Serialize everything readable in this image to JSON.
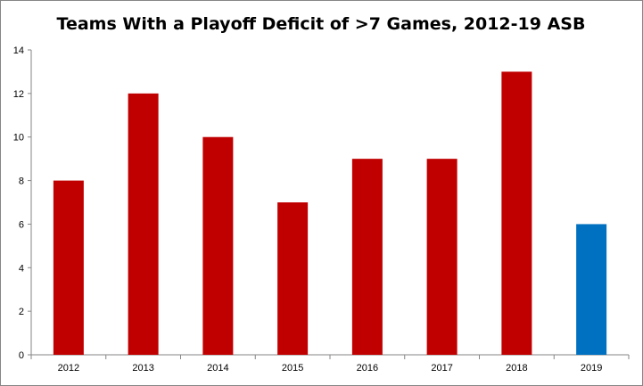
{
  "chart_data": {
    "type": "bar",
    "title": "Teams With a Playoff Deficit of >7 Games, 2012-19 ASB",
    "xlabel": "",
    "ylabel": "",
    "categories": [
      "2012",
      "2013",
      "2014",
      "2015",
      "2016",
      "2017",
      "2018",
      "2019"
    ],
    "values": [
      8,
      12,
      10,
      7,
      9,
      9,
      13,
      6
    ],
    "bar_colors": [
      "#C00000",
      "#C00000",
      "#C00000",
      "#C00000",
      "#C00000",
      "#C00000",
      "#C00000",
      "#0070C0"
    ],
    "ylim": [
      0,
      14
    ],
    "yticks": [
      0,
      2,
      4,
      6,
      8,
      10,
      12,
      14
    ],
    "grid": false,
    "legend": "none"
  }
}
